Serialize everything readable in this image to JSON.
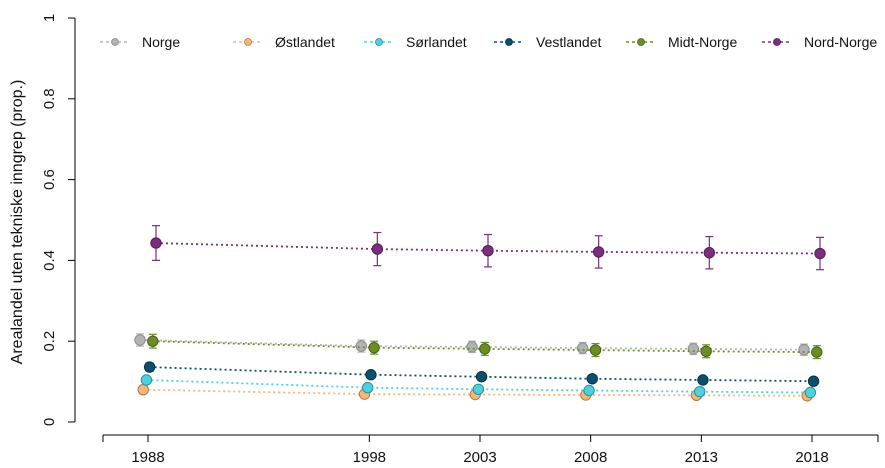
{
  "chart_data": {
    "type": "line",
    "title": "",
    "xlabel": "",
    "ylabel": "Arealandel uten tekniske inngrep (prop.)",
    "x": [
      1988,
      1998,
      2003,
      2008,
      2013,
      2018
    ],
    "xticks": [
      "1988",
      "1998",
      "2003",
      "2008",
      "2013",
      "2018"
    ],
    "ylim": [
      0,
      1
    ],
    "yticks": [
      "0",
      "0.2",
      "0.4",
      "0.6",
      "0.8",
      "1"
    ],
    "legend_position": "top",
    "grid": false,
    "series": [
      {
        "name": "Norge",
        "color": "#b3b3b3",
        "edge": "#8c8c8c",
        "values": [
          0.203,
          0.188,
          0.186,
          0.183,
          0.181,
          0.179
        ],
        "errors": [
          0.015,
          0.015,
          0.014,
          0.014,
          0.014,
          0.014
        ]
      },
      {
        "name": "Østlandet",
        "color": "#f4b77a",
        "edge": "#b07a45",
        "values": [
          0.08,
          0.069,
          0.068,
          0.067,
          0.066,
          0.065
        ],
        "errors": [
          0,
          0,
          0,
          0,
          0,
          0
        ]
      },
      {
        "name": "Sørlandet",
        "color": "#4fd0e0",
        "edge": "#2a8f9c",
        "values": [
          0.104,
          0.085,
          0.081,
          0.078,
          0.075,
          0.073
        ],
        "errors": [
          0,
          0,
          0,
          0,
          0,
          0
        ]
      },
      {
        "name": "Vestlandet",
        "color": "#0b4f6c",
        "edge": "#063246",
        "values": [
          0.136,
          0.117,
          0.112,
          0.107,
          0.104,
          0.101
        ],
        "errors": [
          0.01,
          0.008,
          0.008,
          0.008,
          0.008,
          0.008
        ]
      },
      {
        "name": "Midt-Norge",
        "color": "#6b8e23",
        "edge": "#46611a",
        "values": [
          0.2,
          0.184,
          0.181,
          0.178,
          0.175,
          0.173
        ],
        "errors": [
          0.017,
          0.016,
          0.016,
          0.016,
          0.016,
          0.016
        ]
      },
      {
        "name": "Nord-Norge",
        "color": "#7b2d7e",
        "edge": "#521d54",
        "values": [
          0.443,
          0.428,
          0.424,
          0.421,
          0.419,
          0.417
        ],
        "errors": [
          0.043,
          0.041,
          0.04,
          0.04,
          0.04,
          0.04
        ]
      }
    ]
  }
}
